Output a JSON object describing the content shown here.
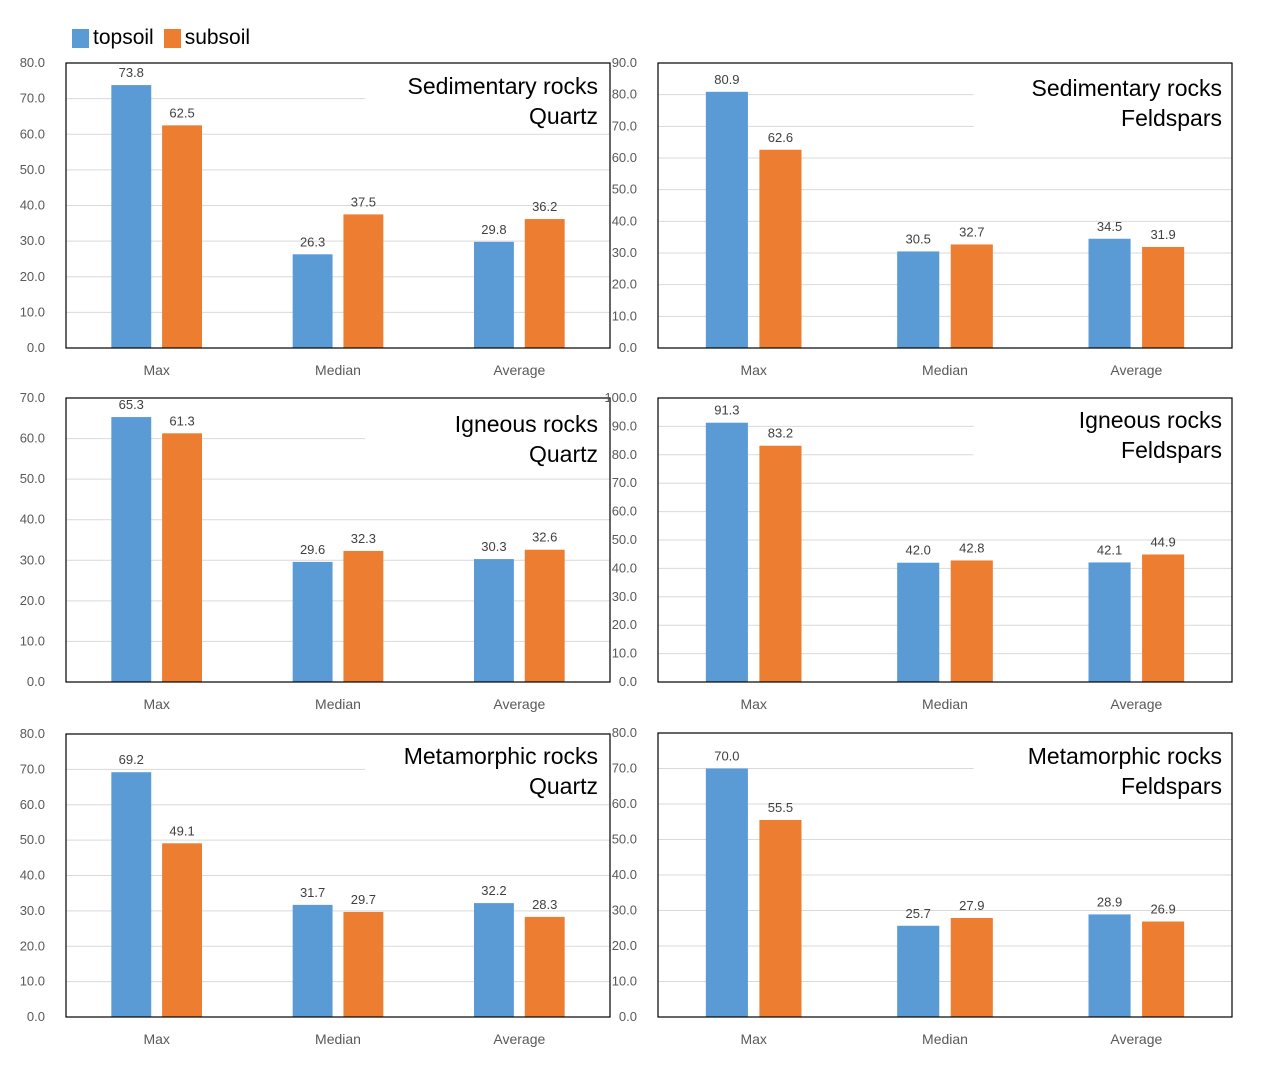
{
  "legend": {
    "topsoil_label": "topsoil",
    "subsoil_label": "subsoil"
  },
  "colors": {
    "topsoil": "#5B9BD5",
    "subsoil": "#ED7D31",
    "grid": "#D9D9D9",
    "axis_text": "#595959",
    "border": "#000000"
  },
  "chart_data": [
    {
      "type": "bar",
      "title": "Sedimentary rocks Quartz",
      "title_lines": [
        "Sedimentary rocks",
        "Quartz"
      ],
      "categories": [
        "Max",
        "Median",
        "Average"
      ],
      "series": [
        {
          "name": "topsoil",
          "values": [
            73.8,
            26.3,
            29.8
          ],
          "labels": [
            "73.8",
            "26.3",
            "29.8"
          ]
        },
        {
          "name": "subsoil",
          "values": [
            62.5,
            37.5,
            36.2
          ],
          "labels": [
            "62.5",
            "37.5",
            "36.2"
          ]
        }
      ],
      "ylim": [
        0,
        80
      ],
      "yticks": [
        "0.0",
        "10.0",
        "20.0",
        "30.0",
        "40.0",
        "50.0",
        "60.0",
        "70.0",
        "80.0"
      ]
    },
    {
      "type": "bar",
      "title": "Sedimentary rocks Feldspars",
      "title_lines": [
        "Sedimentary rocks",
        "Feldspars"
      ],
      "categories": [
        "Max",
        "Median",
        "Average"
      ],
      "series": [
        {
          "name": "topsoil",
          "values": [
            80.9,
            30.5,
            34.5
          ],
          "labels": [
            "80.9",
            "30.5",
            "34.5"
          ]
        },
        {
          "name": "subsoil",
          "values": [
            62.6,
            32.7,
            31.9
          ],
          "labels": [
            "62.6",
            "32.7",
            "31.9"
          ]
        }
      ],
      "ylim": [
        0,
        90
      ],
      "yticks": [
        "0.0",
        "10.0",
        "20.0",
        "30.0",
        "40.0",
        "50.0",
        "60.0",
        "70.0",
        "80.0",
        "90.0"
      ]
    },
    {
      "type": "bar",
      "title": "Igneous rocks Quartz",
      "title_lines": [
        "Igneous rocks",
        "Quartz"
      ],
      "categories": [
        "Max",
        "Median",
        "Average"
      ],
      "series": [
        {
          "name": "topsoil",
          "values": [
            65.3,
            29.6,
            30.3
          ],
          "labels": [
            "65.3",
            "29.6",
            "30.3"
          ]
        },
        {
          "name": "subsoil",
          "values": [
            61.3,
            32.3,
            32.6
          ],
          "labels": [
            "61.3",
            "32.3",
            "32.6"
          ]
        }
      ],
      "ylim": [
        0,
        70
      ],
      "yticks": [
        "0.0",
        "10.0",
        "20.0",
        "30.0",
        "40.0",
        "50.0",
        "60.0",
        "70.0"
      ]
    },
    {
      "type": "bar",
      "title": "Igneous rocks Feldspars",
      "title_lines": [
        "Igneous rocks",
        "Feldspars"
      ],
      "categories": [
        "Max",
        "Median",
        "Average"
      ],
      "series": [
        {
          "name": "topsoil",
          "values": [
            91.3,
            42.0,
            42.1
          ],
          "labels": [
            "91.3",
            "42.0",
            "42.1"
          ]
        },
        {
          "name": "subsoil",
          "values": [
            83.2,
            42.8,
            44.9
          ],
          "labels": [
            "83.2",
            "42.8",
            "44.9"
          ]
        }
      ],
      "ylim": [
        0,
        100
      ],
      "yticks": [
        "0.0",
        "10.0",
        "20.0",
        "30.0",
        "40.0",
        "50.0",
        "60.0",
        "70.0",
        "80.0",
        "90.0",
        "100.0"
      ]
    },
    {
      "type": "bar",
      "title": "Metamorphic rocks Quartz",
      "title_lines": [
        "Metamorphic rocks",
        "Quartz"
      ],
      "categories": [
        "Max",
        "Median",
        "Average"
      ],
      "series": [
        {
          "name": "topsoil",
          "values": [
            69.2,
            31.7,
            32.2
          ],
          "labels": [
            "69.2",
            "31.7",
            "32.2"
          ]
        },
        {
          "name": "subsoil",
          "values": [
            49.1,
            29.7,
            28.3
          ],
          "labels": [
            "49.1",
            "29.7",
            "28.3"
          ]
        }
      ],
      "ylim": [
        0,
        80
      ],
      "yticks": [
        "0.0",
        "10.0",
        "20.0",
        "30.0",
        "40.0",
        "50.0",
        "60.0",
        "70.0",
        "80.0"
      ]
    },
    {
      "type": "bar",
      "title": "Metamorphic rocks Feldspars",
      "title_lines": [
        "Metamorphic rocks",
        "Feldspars"
      ],
      "categories": [
        "Max",
        "Median",
        "Average"
      ],
      "series": [
        {
          "name": "topsoil",
          "values": [
            70.0,
            25.7,
            28.9
          ],
          "labels": [
            "70.0",
            "25.7",
            "28.9"
          ]
        },
        {
          "name": "subsoil",
          "values": [
            55.5,
            27.9,
            26.9
          ],
          "labels": [
            "55.5",
            "27.9",
            "26.9"
          ]
        }
      ],
      "ylim": [
        0,
        80
      ],
      "yticks": [
        "0.0",
        "10.0",
        "20.0",
        "30.0",
        "40.0",
        "50.0",
        "60.0",
        "70.0",
        "80.0"
      ]
    }
  ]
}
